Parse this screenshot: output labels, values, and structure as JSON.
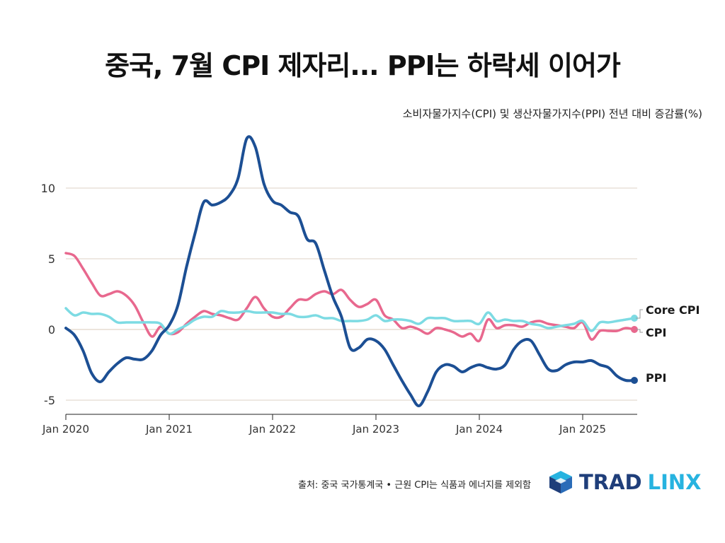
{
  "header": {
    "title": "중국, 7월 CPI 제자리... PPI는 하락세 이어가",
    "subtitle": "소비자물가지수(CPI) 및 생산자물가지수(PPI) 전년 대비 증감률(%)"
  },
  "footer": {
    "source": "출처: 중국 국가통계국 • 근원 CPI는 식품과 에너지를 제외함",
    "logo_part1": "TRAD",
    "logo_part2": "LINX",
    "logo_colors": [
      "#1f3e7a",
      "#27b3e0"
    ]
  },
  "chart_data": {
    "type": "line",
    "title": "중국, 7월 CPI 제자리... PPI는 하락세 이어가",
    "subtitle": "소비자물가지수(CPI) 및 생산자물가지수(PPI) 전년 대비 증감률(%)",
    "xlabel": "",
    "ylabel": "",
    "ylim": [
      -6,
      13.5
    ],
    "y_ticks": [
      -5,
      0,
      5,
      10
    ],
    "x_ticks": [
      "Jan 2020",
      "Jan 2021",
      "Jan 2022",
      "Jan 2023",
      "Jan 2024",
      "Jan 2025"
    ],
    "grid": "horizontal",
    "legend": "end-of-line labels (right)",
    "x": [
      "2020-01",
      "2020-02",
      "2020-03",
      "2020-04",
      "2020-05",
      "2020-06",
      "2020-07",
      "2020-08",
      "2020-09",
      "2020-10",
      "2020-11",
      "2020-12",
      "2021-01",
      "2021-02",
      "2021-03",
      "2021-04",
      "2021-05",
      "2021-06",
      "2021-07",
      "2021-08",
      "2021-09",
      "2021-10",
      "2021-11",
      "2021-12",
      "2022-01",
      "2022-02",
      "2022-03",
      "2022-04",
      "2022-05",
      "2022-06",
      "2022-07",
      "2022-08",
      "2022-09",
      "2022-10",
      "2022-11",
      "2022-12",
      "2023-01",
      "2023-02",
      "2023-03",
      "2023-04",
      "2023-05",
      "2023-06",
      "2023-07",
      "2023-08",
      "2023-09",
      "2023-10",
      "2023-11",
      "2023-12",
      "2024-01",
      "2024-02",
      "2024-03",
      "2024-04",
      "2024-05",
      "2024-06",
      "2024-07",
      "2024-08",
      "2024-09",
      "2024-10",
      "2024-11",
      "2024-12",
      "2025-01",
      "2025-02",
      "2025-03",
      "2025-04",
      "2025-05",
      "2025-06",
      "2025-07"
    ],
    "series": [
      {
        "name": "Core CPI",
        "color": "#7ddbe3",
        "values": [
          1.5,
          1.0,
          1.2,
          1.1,
          1.1,
          0.9,
          0.5,
          0.5,
          0.5,
          0.5,
          0.5,
          0.4,
          -0.3,
          0.0,
          0.3,
          0.7,
          0.9,
          0.9,
          1.3,
          1.2,
          1.2,
          1.3,
          1.2,
          1.2,
          1.2,
          1.1,
          1.1,
          0.9,
          0.9,
          1.0,
          0.8,
          0.8,
          0.6,
          0.6,
          0.6,
          0.7,
          1.0,
          0.6,
          0.7,
          0.7,
          0.6,
          0.4,
          0.8,
          0.8,
          0.8,
          0.6,
          0.6,
          0.6,
          0.4,
          1.2,
          0.6,
          0.7,
          0.6,
          0.6,
          0.4,
          0.3,
          0.1,
          0.2,
          0.3,
          0.4,
          0.6,
          -0.1,
          0.5,
          0.5,
          0.6,
          0.7,
          0.8
        ]
      },
      {
        "name": "CPI",
        "color": "#e8688e",
        "values": [
          5.4,
          5.2,
          4.3,
          3.3,
          2.4,
          2.5,
          2.7,
          2.4,
          1.7,
          0.5,
          -0.5,
          0.2,
          -0.3,
          -0.2,
          0.4,
          0.9,
          1.3,
          1.1,
          1.0,
          0.8,
          0.7,
          1.5,
          2.3,
          1.5,
          0.9,
          0.9,
          1.5,
          2.1,
          2.1,
          2.5,
          2.7,
          2.5,
          2.8,
          2.1,
          1.6,
          1.8,
          2.1,
          1.0,
          0.7,
          0.1,
          0.2,
          0.0,
          -0.3,
          0.1,
          0.0,
          -0.2,
          -0.5,
          -0.3,
          -0.8,
          0.7,
          0.1,
          0.3,
          0.3,
          0.2,
          0.5,
          0.6,
          0.4,
          0.3,
          0.2,
          0.1,
          0.5,
          -0.7,
          -0.1,
          -0.1,
          -0.1,
          0.1,
          0.0
        ]
      },
      {
        "name": "PPI",
        "color": "#1c4f94",
        "values": [
          0.1,
          -0.4,
          -1.5,
          -3.1,
          -3.7,
          -3.0,
          -2.4,
          -2.0,
          -2.1,
          -2.1,
          -1.5,
          -0.4,
          0.3,
          1.7,
          4.4,
          6.8,
          9.0,
          8.8,
          9.0,
          9.5,
          10.7,
          13.5,
          12.9,
          10.3,
          9.1,
          8.8,
          8.3,
          8.0,
          6.4,
          6.1,
          4.2,
          2.3,
          0.9,
          -1.3,
          -1.3,
          -0.7,
          -0.8,
          -1.4,
          -2.5,
          -3.6,
          -4.6,
          -5.4,
          -4.4,
          -3.0,
          -2.5,
          -2.6,
          -3.0,
          -2.7,
          -2.5,
          -2.7,
          -2.8,
          -2.5,
          -1.4,
          -0.8,
          -0.8,
          -1.8,
          -2.8,
          -2.9,
          -2.5,
          -2.3,
          -2.3,
          -2.2,
          -2.5,
          -2.7,
          -3.3,
          -3.6,
          -3.6
        ]
      }
    ],
    "end_labels": [
      "Core CPI",
      "CPI",
      "PPI"
    ]
  }
}
